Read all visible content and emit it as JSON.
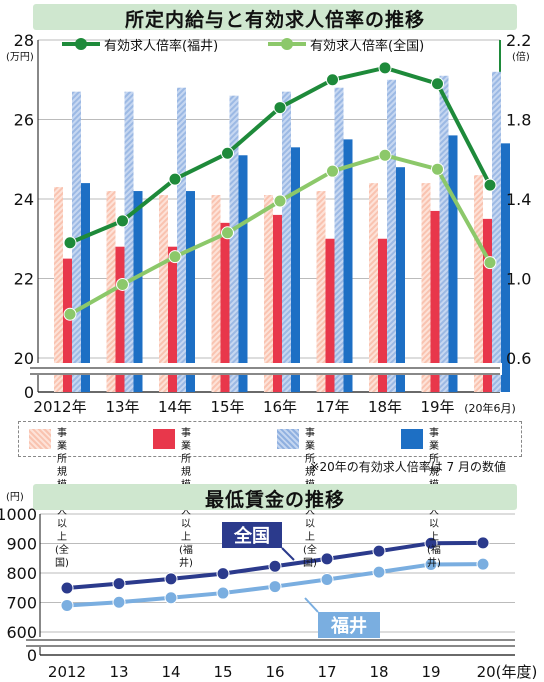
{
  "top": {
    "title": "所定内給与と有効求人倍率の推移",
    "y_left_unit": "(万円)",
    "y_right_unit": "(倍)",
    "left_ticks": [
      "28",
      "26",
      "24",
      "22",
      "20",
      "0"
    ],
    "right_ticks": [
      "2.2",
      "1.8",
      "1.4",
      "1.0",
      "0.6"
    ],
    "x_labels": [
      "2012年",
      "13年",
      "14年",
      "15年",
      "16年",
      "17年",
      "18年",
      "19年",
      "(20年6月)"
    ],
    "line_legend": [
      "有効求人倍率(福井)",
      "有効求人倍率(全国)"
    ],
    "bar_legend": [
      {
        "line1": "事業所規模",
        "line2": "5人以上(全国)",
        "swatch": "light"
      },
      {
        "line1": "事業所規模",
        "line2": "5人以上(福井)",
        "swatch": "red"
      },
      {
        "line1": "事業所規模",
        "line2": "30人以上(全国)",
        "swatch": "lblue"
      },
      {
        "line1": "事業所規模",
        "line2": "30人以上(福井)",
        "swatch": "dblue"
      }
    ],
    "note": "※20年の有効求人倍率は 7 月の数値"
  },
  "bottom": {
    "title": "最低賃金の推移",
    "y_unit": "(円)",
    "y_ticks": [
      "1000",
      "900",
      "800",
      "700",
      "600",
      "0"
    ],
    "x_labels": [
      "2012",
      "13",
      "14",
      "15",
      "16",
      "17",
      "18",
      "19",
      "20(年度)"
    ],
    "label_national": "全国",
    "label_fukui": "福井"
  },
  "colors": {
    "fukui_line": "#1e8a3a",
    "national_line": "#8cc86a",
    "bar_5_national": "#f9c3b0",
    "bar_5_fukui": "#e8374b",
    "bar_30_national": "#9cb9e4",
    "bar_30_fukui": "#1d6fc4",
    "wage_national": "#2b3a8c",
    "wage_fukui": "#7aaee0",
    "title_band": "#cfe7cf"
  },
  "chart_data": [
    {
      "type": "bar",
      "title": "所定内給与と有効求人倍率の推移",
      "ylabel": "(万円)",
      "ylim": [
        20,
        28
      ],
      "categories": [
        "2012",
        "13",
        "14",
        "15",
        "16",
        "17",
        "18",
        "19",
        "20年6月"
      ],
      "series": [
        {
          "name": "事業所規模5人以上(全国)",
          "values": [
            24.3,
            24.2,
            24.1,
            24.1,
            24.1,
            24.2,
            24.4,
            24.4,
            24.6
          ]
        },
        {
          "name": "事業所規模5人以上(福井)",
          "values": [
            22.5,
            22.8,
            22.8,
            23.4,
            23.6,
            23.0,
            23.0,
            23.7,
            23.5
          ]
        },
        {
          "name": "事業所規模30人以上(全国)",
          "values": [
            26.7,
            26.7,
            26.8,
            26.6,
            26.7,
            26.8,
            27.0,
            27.1,
            27.2
          ]
        },
        {
          "name": "事業所規模30人以上(福井)",
          "values": [
            24.4,
            24.2,
            24.2,
            25.1,
            25.3,
            25.5,
            24.8,
            25.6,
            25.4
          ]
        }
      ]
    },
    {
      "type": "line",
      "y_axis": "right",
      "ylabel": "(倍)",
      "ylim": [
        0.6,
        2.2
      ],
      "categories": [
        "2012",
        "13",
        "14",
        "15",
        "16",
        "17",
        "18",
        "19",
        "20年7月"
      ],
      "series": [
        {
          "name": "有効求人倍率(福井)",
          "values": [
            1.18,
            1.29,
            1.5,
            1.63,
            1.86,
            2.0,
            2.06,
            1.98,
            1.47
          ]
        },
        {
          "name": "有効求人倍率(全国)",
          "values": [
            0.82,
            0.97,
            1.11,
            1.23,
            1.39,
            1.54,
            1.62,
            1.55,
            1.08
          ]
        }
      ]
    },
    {
      "type": "line",
      "title": "最低賃金の推移",
      "ylabel": "(円)",
      "xlabel": "(年度)",
      "ylim": [
        600,
        1000
      ],
      "categories": [
        "2012",
        "13",
        "14",
        "15",
        "16",
        "17",
        "18",
        "19",
        "20"
      ],
      "series": [
        {
          "name": "全国",
          "values": [
            749,
            764,
            780,
            798,
            823,
            848,
            874,
            901,
            902
          ]
        },
        {
          "name": "福井",
          "values": [
            690,
            701,
            716,
            732,
            754,
            778,
            803,
            829,
            830
          ]
        }
      ]
    }
  ]
}
